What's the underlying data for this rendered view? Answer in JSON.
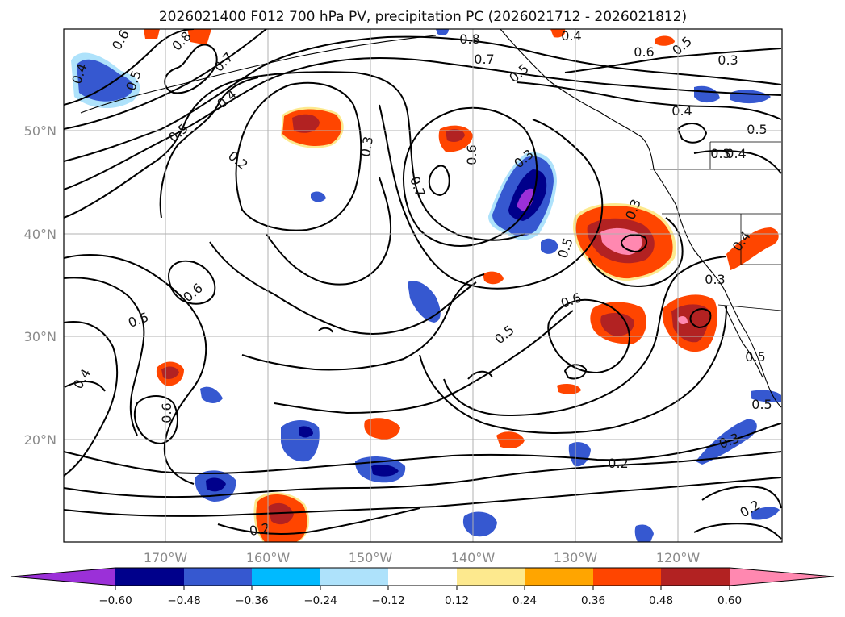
{
  "title": "2026021400 F012 700 hPa PV, precipitation PC (2026021712 - 2026021812)",
  "lon_labels": [
    "170°W",
    "160°W",
    "150°W",
    "140°W",
    "130°W",
    "120°W"
  ],
  "lat_labels": [
    "50°N",
    "40°N",
    "30°N",
    "20°N"
  ],
  "colorbar": {
    "ticks": [
      "−0.60",
      "−0.48",
      "−0.36",
      "−0.24",
      "−0.12",
      "0.12",
      "0.24",
      "0.36",
      "0.48",
      "0.60"
    ],
    "colors": [
      "#9b30d8",
      "#00008b",
      "#3658d0",
      "#00baff",
      "#aee2fb",
      "#ffffff",
      "#fde98e",
      "#ffa500",
      "#ff4500",
      "#b22222",
      "#ff88b0"
    ]
  },
  "contour_labels": [
    {
      "text": "0.6"
    },
    {
      "text": "0.8"
    },
    {
      "text": "0.5"
    },
    {
      "text": "0.7"
    },
    {
      "text": "0.4"
    },
    {
      "text": "0.5"
    },
    {
      "text": "0.4"
    },
    {
      "text": "0.2"
    },
    {
      "text": "0.3"
    },
    {
      "text": "0.7"
    },
    {
      "text": "0.6"
    },
    {
      "text": "0.8"
    },
    {
      "text": "0.7"
    },
    {
      "text": "0.5"
    },
    {
      "text": "0.4"
    },
    {
      "text": "0.6"
    },
    {
      "text": "0.5"
    },
    {
      "text": "0.3"
    },
    {
      "text": "0.4"
    },
    {
      "text": "0.5"
    },
    {
      "text": "0.3"
    },
    {
      "text": "0.5"
    },
    {
      "text": "0.3"
    },
    {
      "text": "0.3"
    },
    {
      "text": "0.4"
    },
    {
      "text": "0.6"
    },
    {
      "text": "0.5"
    },
    {
      "text": "0.6"
    },
    {
      "text": "0.5"
    },
    {
      "text": "0.4"
    },
    {
      "text": "0.6"
    },
    {
      "text": "0.2"
    },
    {
      "text": "0.3"
    },
    {
      "text": "0.5"
    },
    {
      "text": "0.2"
    },
    {
      "text": "0.2"
    },
    {
      "text": "0.5"
    },
    {
      "text": "0.3"
    },
    {
      "text": "0.4"
    }
  ]
}
